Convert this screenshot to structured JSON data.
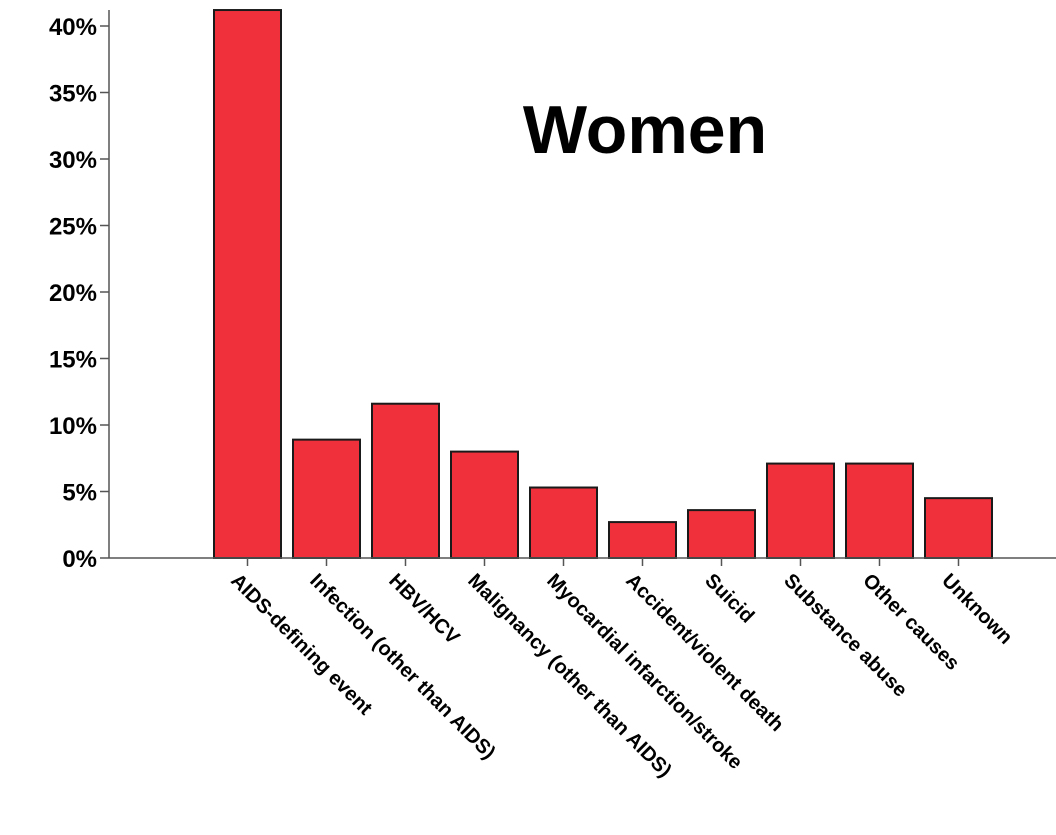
{
  "chart_data": {
    "type": "bar",
    "title": "Women",
    "xlabel": "",
    "ylabel": "",
    "categories": [
      "AIDS-defining event",
      "Infection (other than AIDS)",
      "HBV/HCV",
      "Malignancy (other than AIDS)",
      "Myocardial infarction/stroke",
      "Accident/violent death",
      "Suicid",
      "Substance abuse",
      "Other causes",
      "Unknown"
    ],
    "values": [
      41.2,
      8.9,
      11.6,
      8.0,
      5.3,
      2.7,
      3.6,
      7.1,
      7.1,
      4.5
    ],
    "ylim": [
      0,
      41.5
    ],
    "yticks": [
      0,
      5,
      10,
      15,
      20,
      25,
      30,
      35,
      40
    ],
    "ytick_labels": [
      "0%",
      "5%",
      "10%",
      "15%",
      "20%",
      "25%",
      "30%",
      "35%",
      "40%"
    ],
    "bar_color": "#f0313b",
    "grid": false,
    "legend": "none"
  }
}
